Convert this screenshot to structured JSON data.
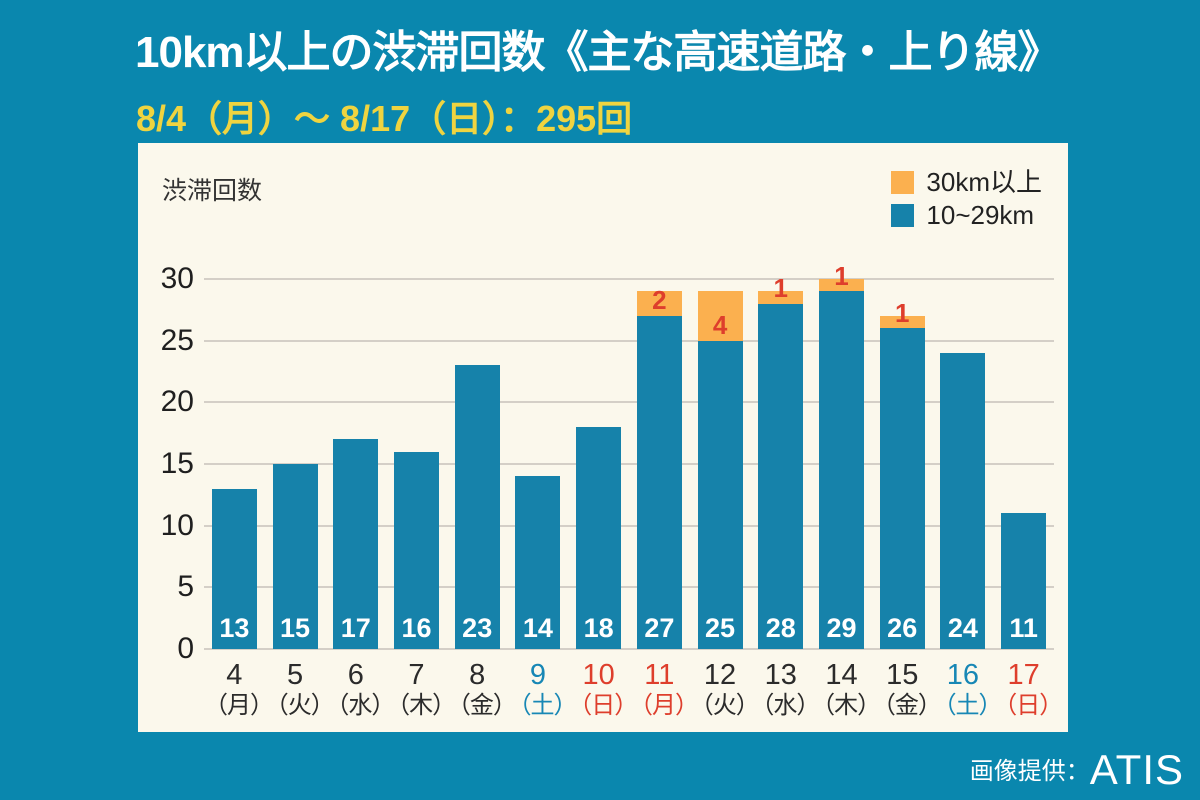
{
  "title": "10km以上の渋滞回数《主な高速道路・上り線》",
  "subtitle": "8/4（月）～ 8/17（日）：295回",
  "credit": {
    "prefix": "画像提供：",
    "name": "ATIS"
  },
  "chart": {
    "axis_label": "渋滞回数",
    "legend": [
      {
        "label": "30km以上",
        "color": "#FBB04F"
      },
      {
        "label": "10~29km",
        "color": "#1682AA"
      }
    ],
    "category_colors": {
      "weekday": "#2B2B2B",
      "saturday": "#1787B5",
      "holiday": "#DE3E2C"
    },
    "colors": {
      "background": "#0A87AE",
      "panel": "#FBF8EC",
      "gridline": "#D4CFC7",
      "title_white": "#FFFFFF",
      "subtitle_yellow": "#EFD440",
      "bar_blue": "#1682AA",
      "bar_orange": "#FBB04F",
      "bar_value_label": "#FFFFFF",
      "orange_count_label": "#DE3E2C"
    }
  },
  "chart_data": {
    "type": "bar",
    "stacked": true,
    "title": "10km以上の渋滞回数《主な高速道路・上り線》",
    "subtitle": "8/4（月）～ 8/17（日）：295回",
    "total_count": 295,
    "ylabel": "渋滞回数",
    "ylim": [
      0,
      30
    ],
    "y_ticks": [
      30,
      25,
      20,
      15,
      10,
      5,
      0
    ],
    "grid": true,
    "legend_position": "top-right",
    "categories": [
      {
        "day": "4",
        "weekday": "（月）",
        "type": "weekday"
      },
      {
        "day": "5",
        "weekday": "（火）",
        "type": "weekday"
      },
      {
        "day": "6",
        "weekday": "（水）",
        "type": "weekday"
      },
      {
        "day": "7",
        "weekday": "（木）",
        "type": "weekday"
      },
      {
        "day": "8",
        "weekday": "（金）",
        "type": "weekday"
      },
      {
        "day": "9",
        "weekday": "（土）",
        "type": "saturday"
      },
      {
        "day": "10",
        "weekday": "（日）",
        "type": "holiday"
      },
      {
        "day": "11",
        "weekday": "（月）",
        "type": "holiday"
      },
      {
        "day": "12",
        "weekday": "（火）",
        "type": "weekday"
      },
      {
        "day": "13",
        "weekday": "（水）",
        "type": "weekday"
      },
      {
        "day": "14",
        "weekday": "（木）",
        "type": "weekday"
      },
      {
        "day": "15",
        "weekday": "（金）",
        "type": "weekday"
      },
      {
        "day": "16",
        "weekday": "（土）",
        "type": "saturday"
      },
      {
        "day": "17",
        "weekday": "（日）",
        "type": "holiday"
      }
    ],
    "series": [
      {
        "name": "10~29km",
        "color": "#1682AA",
        "values": [
          13,
          15,
          17,
          16,
          23,
          14,
          18,
          27,
          25,
          28,
          29,
          26,
          24,
          11
        ]
      },
      {
        "name": "30km以上",
        "color": "#FBB04F",
        "values": [
          0,
          0,
          0,
          0,
          0,
          0,
          0,
          2,
          4,
          1,
          1,
          1,
          0,
          0
        ]
      }
    ]
  }
}
